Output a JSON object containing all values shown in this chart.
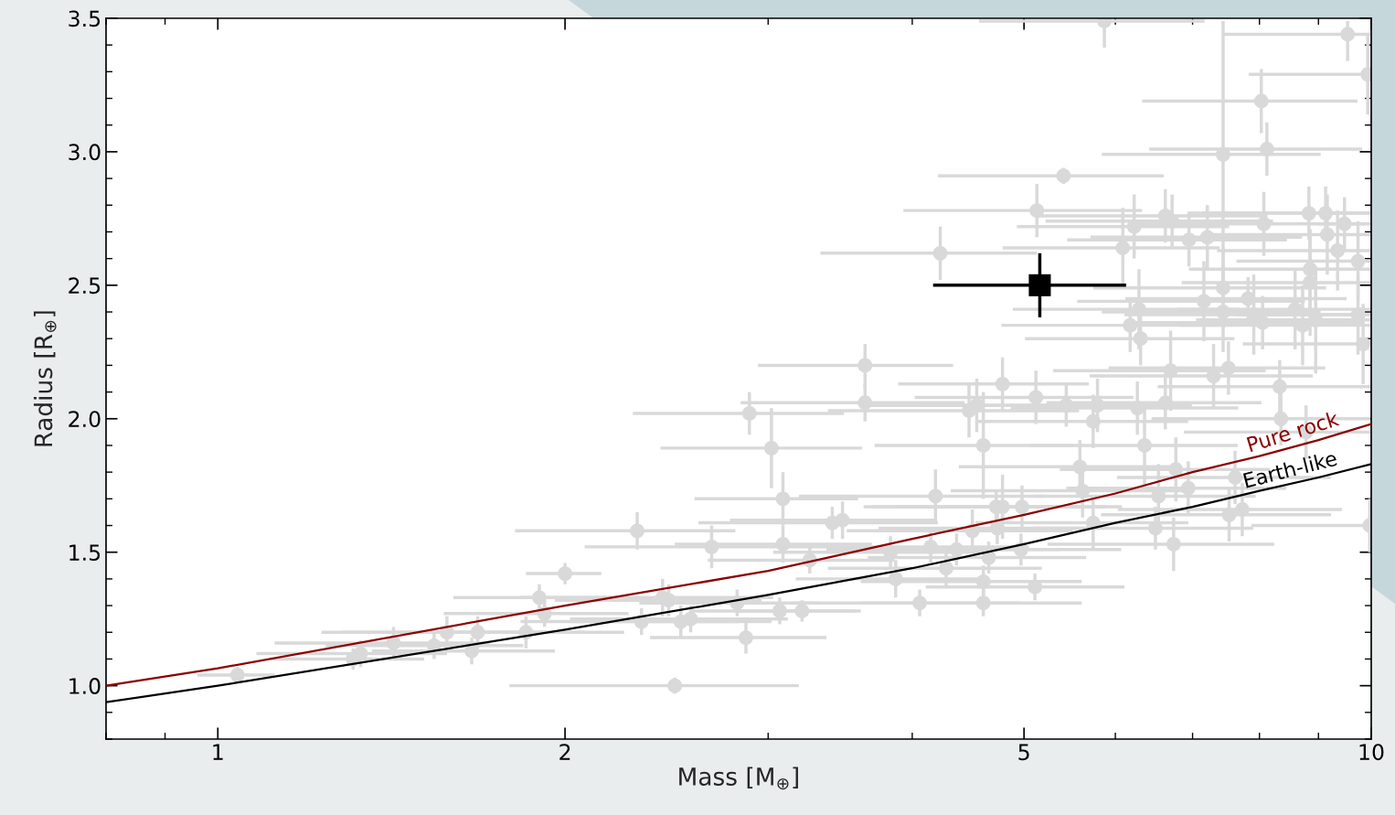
{
  "chart_data": {
    "type": "scatter",
    "xlabel": "Mass [M$_{⊕}$]",
    "ylabel": "Radius [R$_{⊕}$]",
    "log": "x",
    "xlim": [
      0.8,
      10
    ],
    "xticks": [
      1,
      2,
      5,
      10
    ],
    "ylim": [
      0.8,
      3.5
    ],
    "yticks": [
      {
        "value": 1.0,
        "label": "1.0"
      },
      {
        "value": 1.5,
        "label": "1.5"
      },
      {
        "value": 2.0,
        "label": "2.0"
      },
      {
        "value": 2.5,
        "label": "2.5"
      },
      {
        "value": 3.0,
        "label": "3.0"
      },
      {
        "value": 3.5,
        "label": "3.5"
      }
    ],
    "grid": false,
    "legend": false,
    "annotations": [
      {
        "text": "Pure rock",
        "x": 8.6,
        "y": 1.91
      },
      {
        "text": "Earth-like",
        "x": 8.55,
        "y": 1.768
      }
    ],
    "series": [
      {
        "color": "#d9d9d9",
        "marker": "circle",
        "x": [
          1.04,
          1.31,
          1.33,
          1.42,
          1.54,
          1.58,
          1.66,
          1.68,
          1.85,
          1.9,
          1.92,
          2.0,
          2.31,
          2.33,
          2.43,
          2.46,
          2.52,
          2.57,
          2.49,
          2.68,
          2.82,
          2.87,
          2.89,
          3.02,
          3.09,
          3.09,
          3.07,
          3.21,
          3.26,
          3.41,
          3.48,
          3.64,
          3.64,
          3.83,
          3.87,
          4.06,
          4.15,
          4.19,
          4.23,
          4.28,
          4.37,
          4.48,
          4.51,
          4.55,
          4.61,
          4.61,
          4.61,
          4.66,
          4.73,
          4.74,
          4.79,
          4.79,
          4.97,
          4.98,
          5.11,
          5.12,
          5.13,
          5.41,
          5.44,
          5.59,
          5.62,
          5.74,
          5.79,
          5.74,
          5.87,
          6.09,
          6.18,
          6.23,
          6.29,
          6.31,
          6.27,
          6.36,
          6.5,
          6.54,
          6.63,
          6.63,
          6.72,
          6.7,
          6.74,
          6.77,
          6.95,
          6.94,
          7.16,
          7.21,
          7.3,
          7.44,
          7.44,
          7.52,
          7.44,
          7.53,
          7.62,
          7.73,
          7.82,
          7.91,
          8.03,
          8.05,
          8.12,
          8.07,
          8.33,
          8.35,
          8.59,
          8.72,
          8.78,
          8.83,
          8.85,
          8.85,
          8.95,
          9.13,
          9.16,
          9.35,
          9.48,
          9.54,
          9.74,
          9.74,
          9.84,
          9.93,
          9.97
        ],
        "values": [
          1.04,
          1.1,
          1.12,
          1.16,
          1.15,
          1.2,
          1.13,
          1.2,
          1.2,
          1.33,
          1.27,
          1.42,
          1.58,
          1.24,
          1.33,
          1.32,
          1.24,
          1.25,
          1.0,
          1.52,
          1.31,
          1.18,
          2.02,
          1.89,
          1.7,
          1.53,
          1.28,
          1.28,
          1.47,
          1.61,
          1.62,
          2.06,
          2.2,
          1.5,
          1.4,
          1.31,
          1.52,
          1.71,
          2.62,
          1.44,
          1.51,
          2.03,
          1.58,
          2.05,
          1.31,
          1.39,
          1.9,
          1.48,
          1.67,
          1.59,
          1.67,
          2.13,
          1.51,
          1.67,
          1.37,
          2.08,
          2.78,
          2.91,
          2.05,
          1.82,
          1.73,
          1.99,
          2.05,
          1.61,
          3.49,
          2.64,
          2.35,
          2.72,
          2.41,
          2.3,
          2.04,
          1.9,
          1.59,
          1.71,
          2.76,
          2.06,
          2.74,
          2.18,
          1.53,
          1.81,
          2.67,
          1.74,
          2.44,
          2.68,
          2.16,
          2.99,
          2.49,
          2.19,
          2.4,
          1.64,
          1.78,
          1.66,
          2.45,
          2.39,
          3.19,
          2.36,
          3.01,
          2.73,
          2.12,
          2.0,
          2.41,
          2.35,
          1.95,
          2.77,
          2.56,
          2.51,
          2.37,
          2.77,
          2.69,
          2.63,
          2.73,
          3.44,
          2.59,
          2.39,
          2.28,
          3.29,
          1.6
        ],
        "xerrors": [
          0.08,
          0.2,
          0.25,
          0.3,
          0.3,
          0.35,
          0.3,
          0.4,
          0.4,
          0.3,
          0.35,
          0.15,
          0.5,
          0.5,
          0.6,
          0.5,
          0.5,
          0.55,
          0.7,
          0.6,
          0.5,
          0.5,
          0.6,
          0.6,
          0.5,
          0.6,
          0.5,
          0.4,
          0.6,
          0.8,
          0.7,
          0.8,
          0.7,
          0.8,
          0.7,
          0.9,
          0.9,
          1.0,
          0.9,
          0.9,
          1.0,
          1.1,
          1.0,
          0.9,
          1.0,
          1.0,
          0.9,
          1.0,
          1.1,
          1.0,
          1.1,
          0.9,
          1.1,
          1.1,
          1.0,
          1.1,
          1.2,
          1.2,
          1.2,
          1.2,
          1.3,
          1.2,
          1.2,
          1.2,
          1.3,
          1.3,
          1.4,
          1.3,
          1.4,
          1.3,
          1.4,
          1.3,
          1.4,
          1.4,
          1.5,
          1.4,
          1.5,
          1.4,
          1.5,
          1.4,
          1.5,
          1.5,
          1.6,
          1.5,
          1.6,
          1.6,
          1.7,
          1.6,
          1.6,
          1.7,
          1.6,
          1.7,
          1.7,
          1.8,
          1.7,
          1.8,
          1.7,
          1.8,
          [
            6.53,
            9.98
          ],
          [
            6.45,
            9.98
          ],
          [
            6.79,
            9.98
          ],
          [
            6.82,
            9.98
          ],
          [
            6.88,
            9.98
          ],
          [
            6.93,
            9.98
          ],
          [
            6.95,
            9.98
          ],
          [
            6.85,
            9.98
          ],
          [
            7.05,
            9.98
          ],
          [
            7.13,
            9.98
          ],
          [
            7.16,
            9.98
          ],
          [
            7.35,
            9.98
          ],
          0.5,
          [
            7.44,
            9.98
          ],
          [
            7.64,
            9.98
          ],
          [
            7.64,
            9.98
          ],
          [
            7.74,
            9.98
          ],
          [
            7.83,
            9.98
          ],
          [
            7.87,
            9.99
          ]
        ],
        "errors": [
          0.03,
          0.04,
          0.05,
          0.06,
          0.05,
          0.06,
          0.05,
          0.06,
          0.06,
          0.05,
          0.05,
          0.04,
          0.07,
          0.05,
          0.07,
          0.06,
          0.06,
          0.05,
          0.03,
          0.08,
          0.05,
          0.06,
          0.08,
          0.15,
          0.1,
          0.07,
          0.05,
          0.04,
          0.05,
          0.06,
          0.07,
          0.07,
          0.08,
          0.06,
          0.07,
          0.05,
          0.06,
          0.1,
          0.1,
          0.07,
          0.06,
          0.1,
          0.08,
          0.1,
          0.05,
          0.06,
          0.2,
          0.06,
          0.06,
          0.06,
          0.12,
          0.1,
          0.06,
          0.08,
          0.05,
          0.1,
          0.1,
          0.03,
          0.08,
          0.1,
          0.1,
          0.1,
          0.1,
          0.1,
          [
            3.39,
            3.5
          ],
          0.15,
          0.1,
          0.12,
          0.15,
          0.1,
          0.1,
          0.15,
          0.08,
          0.12,
          0.1,
          0.1,
          0.1,
          0.15,
          0.1,
          0.12,
          0.1,
          0.1,
          0.15,
          0.12,
          0.12,
          0.5,
          0.15,
          0.1,
          0.15,
          0.1,
          0.1,
          0.1,
          0.08,
          0.15,
          0.12,
          0.1,
          0.1,
          0.12,
          0.1,
          0.1,
          0.15,
          0.15,
          0.1,
          0.1,
          0.15,
          0.2,
          0.2,
          0.1,
          0.15,
          0.15,
          0.1,
          [
            3.34,
            3.49
          ],
          0.15,
          0.15,
          0.15,
          0.15,
          0.1
        ]
      },
      {
        "color": "#000000",
        "marker": "square",
        "x": [
          5.16
        ],
        "values": [
          2.5
        ],
        "xerrors": [
          [
            4.17,
            6.13
          ]
        ],
        "errors": [
          0.12
        ]
      },
      {
        "type": "line",
        "color": "#8b0000",
        "x": [
          0.8,
          1,
          2,
          3,
          4,
          5,
          6,
          7,
          8,
          9,
          10
        ],
        "values": [
          1.0,
          1.065,
          1.3,
          1.43,
          1.55,
          1.64,
          1.72,
          1.8,
          1.86,
          1.92,
          1.98
        ]
      },
      {
        "type": "line",
        "color": "#000000",
        "x": [
          0.8,
          1,
          2,
          3,
          4,
          5,
          6,
          7,
          8,
          9,
          10
        ],
        "values": [
          0.938,
          1.0,
          1.21,
          1.34,
          1.44,
          1.53,
          1.61,
          1.67,
          1.73,
          1.78,
          1.83
        ]
      }
    ]
  }
}
